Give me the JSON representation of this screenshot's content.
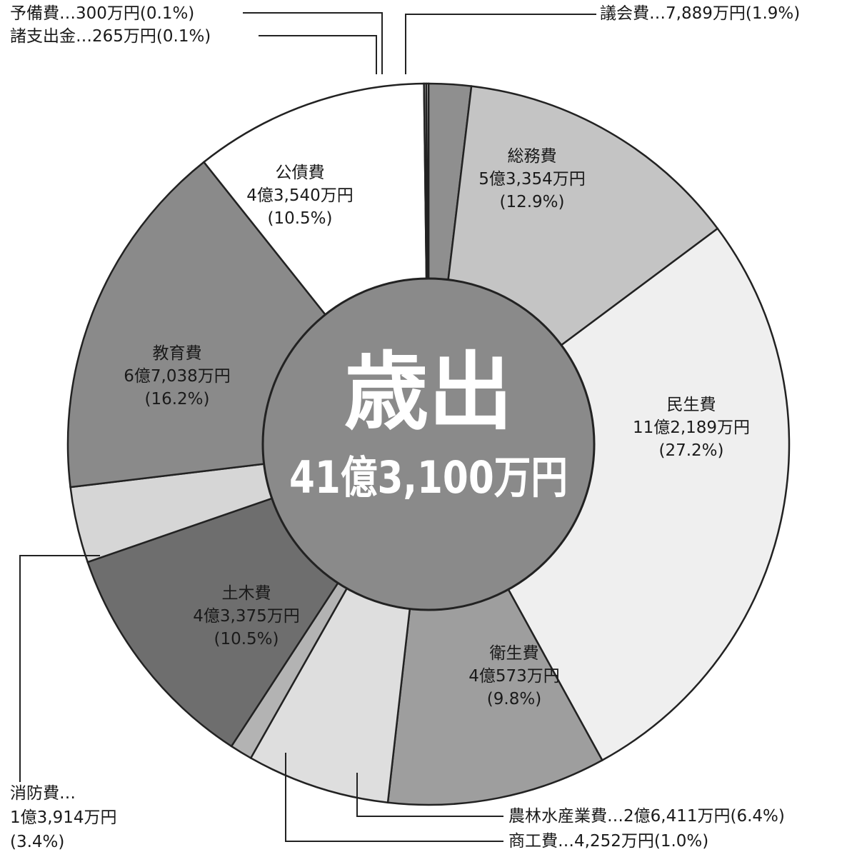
{
  "chart_data": {
    "type": "pie",
    "style": "donut",
    "center_title": "歳出",
    "center_total": "41億3,100万円",
    "slices": [
      {
        "name": "議会費",
        "amount": "7,889万円",
        "value": 1.9,
        "color": "#8f8f8f",
        "label_style": "callout",
        "callout_text": "議会費…7,889万円(1.9%)"
      },
      {
        "name": "総務費",
        "amount": "5億3,354万円",
        "value": 12.9,
        "color": "#c4c4c4",
        "label_style": "inside",
        "lines": [
          "総務費",
          "5億3,354万円",
          "(12.9%)"
        ]
      },
      {
        "name": "民生費",
        "amount": "11億2,189万円",
        "value": 27.2,
        "color": "#efefef",
        "label_style": "inside",
        "lines": [
          "民生費",
          "11億2,189万円",
          "(27.2%)"
        ]
      },
      {
        "name": "衛生費",
        "amount": "4億573万円",
        "value": 9.8,
        "color": "#9e9e9e",
        "label_style": "inside",
        "lines": [
          "衛生費",
          "4億573万円",
          "(9.8%)"
        ]
      },
      {
        "name": "農林水産業費",
        "amount": "2億6,411万円",
        "value": 6.4,
        "color": "#dedede",
        "label_style": "callout",
        "callout_text": "農林水産業費…2億6,411万円(6.4%)"
      },
      {
        "name": "商工費",
        "amount": "4,252万円",
        "value": 1.0,
        "color": "#b3b3b3",
        "label_style": "callout",
        "callout_text": "商工費…4,252万円(1.0%)"
      },
      {
        "name": "土木費",
        "amount": "4億3,375万円",
        "value": 10.5,
        "color": "#6e6e6e",
        "label_style": "inside",
        "lines": [
          "土木費",
          "4億3,375万円",
          "(10.5%)"
        ]
      },
      {
        "name": "消防費",
        "amount": "1億3,914万円",
        "value": 3.4,
        "color": "#d6d6d6",
        "label_style": "callout",
        "callout_lines": [
          "消防費…",
          "1億3,914万円",
          "(3.4%)"
        ]
      },
      {
        "name": "教育費",
        "amount": "6億7,038万円",
        "value": 16.2,
        "color": "#8a8a8a",
        "label_style": "inside",
        "lines": [
          "教育費",
          "6億7,038万円",
          "(16.2%)"
        ]
      },
      {
        "name": "公債費",
        "amount": "4億3,540万円",
        "value": 10.5,
        "color": "#ffffff",
        "label_style": "inside",
        "lines": [
          "公債費",
          "4億3,540万円",
          "(10.5%)"
        ]
      },
      {
        "name": "諸支出金",
        "amount": "265万円",
        "value": 0.1,
        "color": "#cfcfcf",
        "label_style": "callout",
        "callout_text": "諸支出金…265万円(0.1%)"
      },
      {
        "name": "予備費",
        "amount": "300万円",
        "value": 0.1,
        "color": "#f2f2f2",
        "label_style": "callout",
        "callout_text": "予備費…300万円(0.1%)"
      }
    ],
    "colors": {
      "center": "#8a8a8a",
      "border": "#222222",
      "text": "#1a1a1a",
      "center_text": "#ffffff"
    }
  }
}
